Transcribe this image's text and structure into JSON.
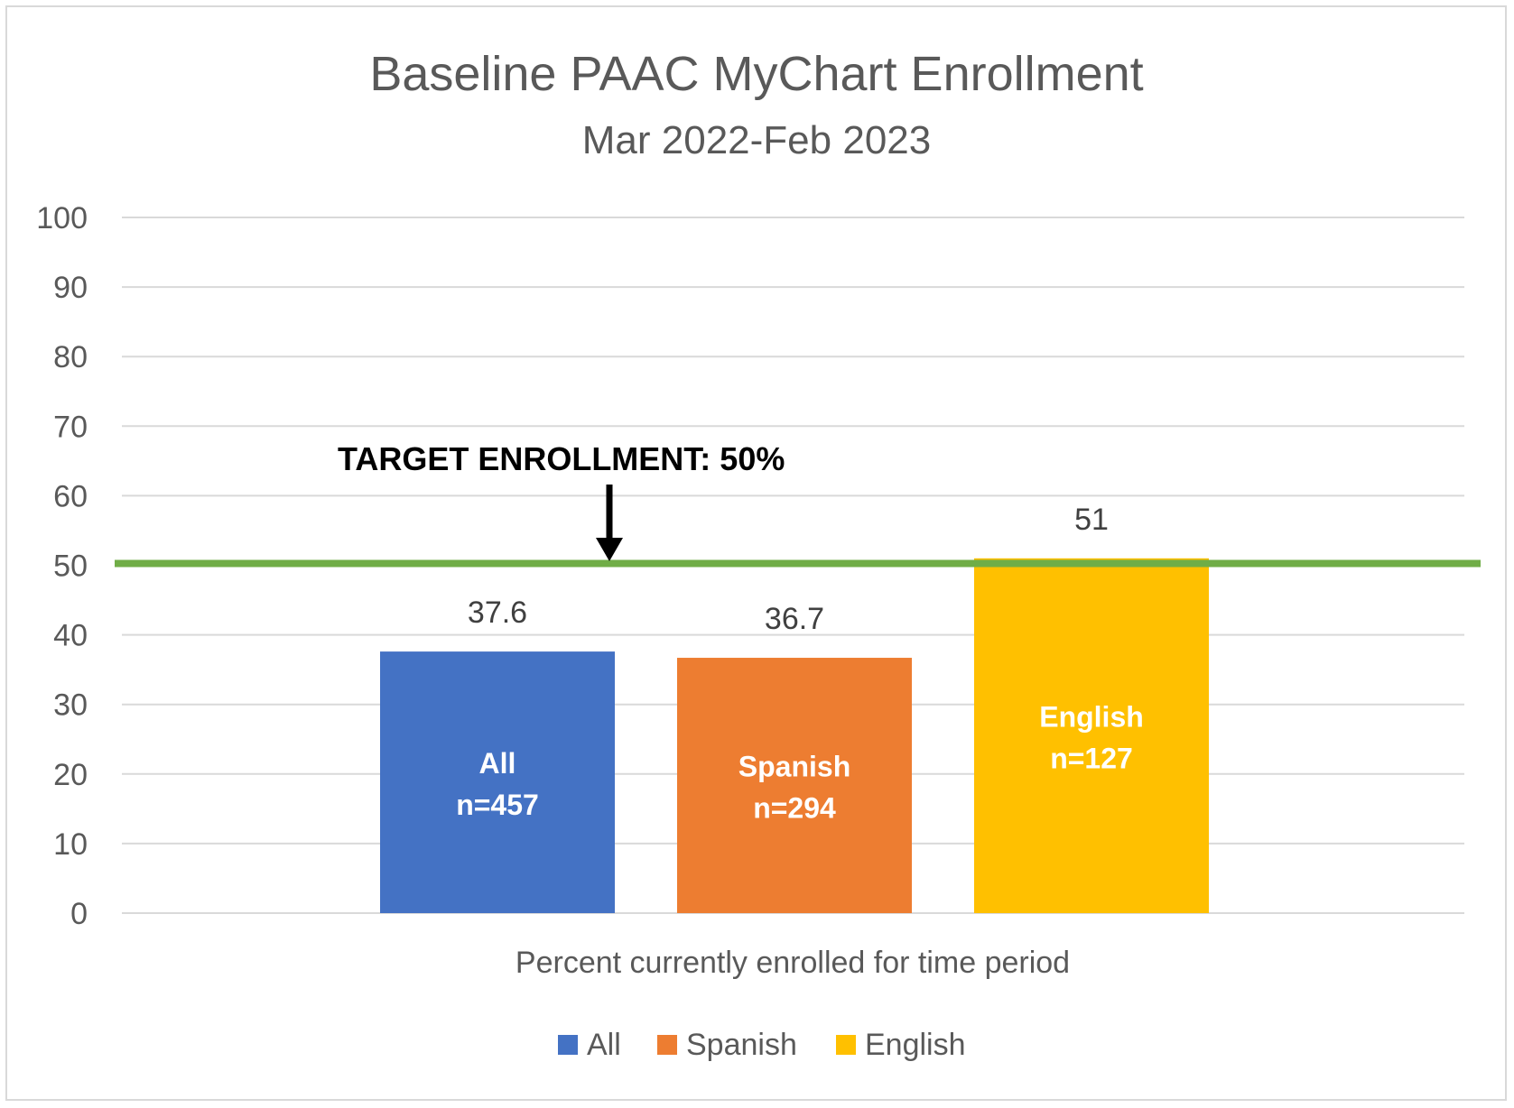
{
  "chart_data": {
    "type": "bar",
    "title": "Baseline PAAC MyChart Enrollment",
    "subtitle": "Mar 2022-Feb 2023",
    "xlabel": "Percent currently enrolled for time period",
    "ylabel": "",
    "ylim": [
      0,
      100
    ],
    "yticks": [
      0,
      10,
      20,
      30,
      40,
      50,
      60,
      70,
      80,
      90,
      100
    ],
    "grid": true,
    "legend_position": "bottom",
    "categories": [
      "Percent currently enrolled for time period"
    ],
    "series": [
      {
        "name": "All",
        "value": 37.6,
        "data_label": "37.6",
        "bar_label": "All",
        "bar_n": "n=457",
        "color": "#4472C4"
      },
      {
        "name": "Spanish",
        "value": 36.7,
        "data_label": "36.7",
        "bar_label": "Spanish",
        "bar_n": "n=294",
        "color": "#ED7D31"
      },
      {
        "name": "English",
        "value": 51,
        "data_label": "51",
        "bar_label": "English",
        "bar_n": "n=127",
        "color": "#FFC000"
      }
    ],
    "target": {
      "value": 50,
      "label": "TARGET ENROLLMENT: 50%",
      "color": "#70AD47"
    }
  }
}
